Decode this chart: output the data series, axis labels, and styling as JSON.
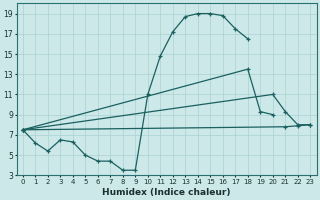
{
  "xlabel": "Humidex (Indice chaleur)",
  "background_color": "#cde8e8",
  "grid_color": "#aad0d0",
  "line_color": "#1a6060",
  "xlim": [
    -0.5,
    23.5
  ],
  "ylim": [
    3,
    20
  ],
  "xticks": [
    0,
    1,
    2,
    3,
    4,
    5,
    6,
    7,
    8,
    9,
    10,
    11,
    12,
    13,
    14,
    15,
    16,
    17,
    18,
    19,
    20,
    21,
    22,
    23
  ],
  "yticks": [
    3,
    5,
    7,
    9,
    11,
    13,
    15,
    17,
    19
  ],
  "curves": {
    "bell": {
      "x": [
        0,
        1,
        2,
        3,
        4,
        5,
        6,
        7,
        8,
        9,
        10,
        11,
        12,
        13,
        14,
        15,
        16,
        17,
        18
      ],
      "y": [
        7.5,
        6.2,
        5.4,
        6.5,
        6.3,
        5.0,
        4.4,
        4.4,
        3.5,
        3.5,
        11.0,
        14.8,
        17.2,
        18.7,
        19.0,
        19.0,
        18.8,
        17.5,
        16.5
      ]
    },
    "upper": {
      "x": [
        0,
        18,
        19,
        20
      ],
      "y": [
        7.5,
        13.5,
        9.3,
        9.0
      ]
    },
    "lower": {
      "x": [
        0,
        20,
        21,
        22,
        23
      ],
      "y": [
        7.5,
        11.0,
        9.3,
        8.0,
        8.0
      ]
    },
    "flat": {
      "x": [
        0,
        21,
        22,
        23
      ],
      "y": [
        7.5,
        7.8,
        7.9,
        8.0
      ]
    }
  }
}
